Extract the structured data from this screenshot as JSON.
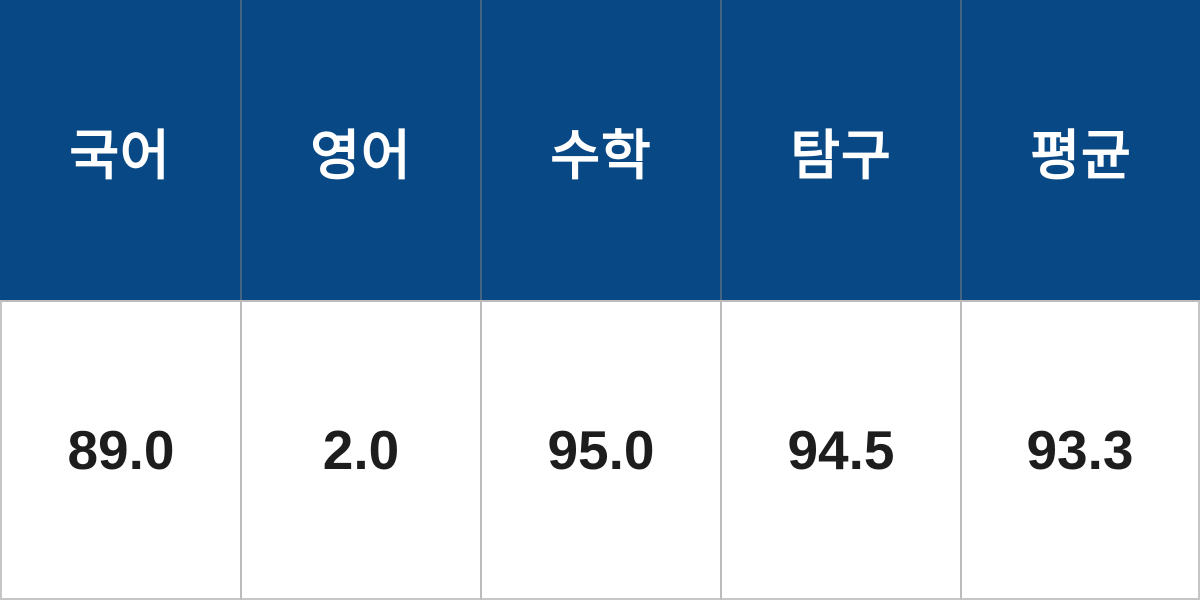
{
  "chart_data": {
    "type": "table",
    "columns": [
      "국어",
      "영어",
      "수학",
      "탐구",
      "평균"
    ],
    "rows": [
      [
        89.0,
        2.0,
        95.0,
        94.5,
        93.3
      ]
    ],
    "title": "",
    "legend": "none",
    "grid": "column dividers and header/body separator only"
  },
  "table": {
    "headers": [
      "국어",
      "영어",
      "수학",
      "탐구",
      "평균"
    ],
    "values": [
      "89.0",
      "2.0",
      "95.0",
      "94.5",
      "93.3"
    ]
  },
  "colors": {
    "header_bg": "#084884",
    "header_text": "#FFFFFF",
    "body_bg": "#FFFFFF",
    "body_text": "#1D1D1D",
    "divider": "rgba(127,127,127,0.52)"
  }
}
